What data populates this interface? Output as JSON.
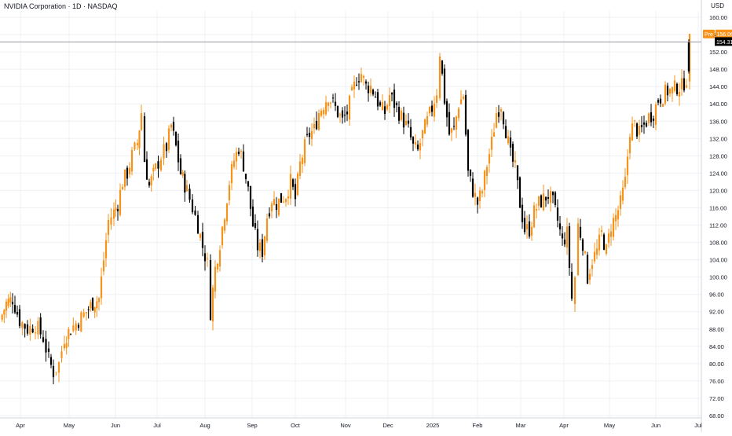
{
  "header": {
    "title": "NVIDIA Corporation · 1D · NASDAQ",
    "currency": "USD"
  },
  "colors": {
    "up": "#f7931a",
    "down": "#000000",
    "grid": "#eef0f4",
    "axis_text": "#131722",
    "last_price_bg": "#000000",
    "pre_bg": "#f7931a"
  },
  "price_labels": {
    "pre_tag": "Pre",
    "pre_price": "156.06",
    "last_price": "154.31"
  },
  "chart_data": {
    "type": "candlestick",
    "title": "NVIDIA Corporation · 1D · NASDAQ",
    "ylabel": "USD",
    "ylim": [
      68,
      161
    ],
    "y_ticks": [
      "160.00",
      "156.00",
      "152.00",
      "148.00",
      "144.00",
      "140.00",
      "136.00",
      "132.00",
      "128.00",
      "124.00",
      "120.00",
      "116.00",
      "112.00",
      "108.00",
      "104.00",
      "100.00",
      "96.00",
      "92.00",
      "88.00",
      "84.00",
      "80.00",
      "76.00",
      "72.00",
      "68.00"
    ],
    "x_ticks": [
      "Apr",
      "May",
      "Jun",
      "Jul",
      "Aug",
      "Sep",
      "Oct",
      "Nov",
      "Dec",
      "2025",
      "Feb",
      "Mar",
      "Apr",
      "May",
      "Jun",
      "Jul"
    ],
    "grid": true,
    "last_price": 154.31,
    "premarket_price": 156.06,
    "ohlc_note": "approximate path read from candles",
    "close_path": [
      [
        0,
        90
      ],
      [
        8,
        94
      ],
      [
        16,
        95
      ],
      [
        25,
        90
      ],
      [
        35,
        88
      ],
      [
        45,
        89
      ],
      [
        55,
        86
      ],
      [
        62,
        81
      ],
      [
        68,
        78
      ],
      [
        75,
        80
      ],
      [
        82,
        86
      ],
      [
        90,
        88
      ],
      [
        100,
        90
      ],
      [
        110,
        92
      ],
      [
        118,
        94
      ],
      [
        126,
        95
      ],
      [
        132,
        104
      ],
      [
        138,
        113
      ],
      [
        145,
        115
      ],
      [
        150,
        117
      ],
      [
        156,
        122
      ],
      [
        162,
        124
      ],
      [
        168,
        128
      ],
      [
        175,
        131
      ],
      [
        180,
        138
      ],
      [
        184,
        127
      ],
      [
        190,
        121
      ],
      [
        198,
        125
      ],
      [
        205,
        128
      ],
      [
        212,
        130
      ],
      [
        218,
        135
      ],
      [
        224,
        130
      ],
      [
        230,
        124
      ],
      [
        238,
        120
      ],
      [
        245,
        116
      ],
      [
        252,
        112
      ],
      [
        258,
        107
      ],
      [
        264,
        103
      ],
      [
        268,
        92
      ],
      [
        274,
        102
      ],
      [
        280,
        108
      ],
      [
        286,
        115
      ],
      [
        292,
        122
      ],
      [
        298,
        127
      ],
      [
        304,
        130
      ],
      [
        310,
        126
      ],
      [
        316,
        120
      ],
      [
        322,
        112
      ],
      [
        328,
        107
      ],
      [
        334,
        106
      ],
      [
        340,
        114
      ],
      [
        346,
        118
      ],
      [
        352,
        117
      ],
      [
        358,
        118
      ],
      [
        364,
        119
      ],
      [
        370,
        122
      ],
      [
        376,
        118
      ],
      [
        382,
        126
      ],
      [
        388,
        130
      ],
      [
        394,
        133
      ],
      [
        400,
        134
      ],
      [
        406,
        138
      ],
      [
        412,
        140
      ],
      [
        418,
        142
      ],
      [
        424,
        140
      ],
      [
        430,
        138
      ],
      [
        436,
        136
      ],
      [
        442,
        138
      ],
      [
        448,
        142
      ],
      [
        454,
        146
      ],
      [
        460,
        147
      ],
      [
        466,
        144
      ],
      [
        472,
        144
      ],
      [
        478,
        142
      ],
      [
        484,
        139
      ],
      [
        490,
        138
      ],
      [
        496,
        142
      ],
      [
        502,
        140
      ],
      [
        508,
        138
      ],
      [
        514,
        136
      ],
      [
        520,
        134
      ],
      [
        526,
        130
      ],
      [
        532,
        129
      ],
      [
        538,
        133
      ],
      [
        544,
        136
      ],
      [
        550,
        139
      ],
      [
        556,
        143
      ],
      [
        560,
        152
      ],
      [
        566,
        141
      ],
      [
        572,
        133
      ],
      [
        578,
        134
      ],
      [
        584,
        140
      ],
      [
        590,
        142
      ],
      [
        596,
        124
      ],
      [
        602,
        120
      ],
      [
        608,
        117
      ],
      [
        614,
        120
      ],
      [
        620,
        126
      ],
      [
        626,
        131
      ],
      [
        632,
        138
      ],
      [
        638,
        140
      ],
      [
        644,
        134
      ],
      [
        650,
        128
      ],
      [
        656,
        125
      ],
      [
        662,
        117
      ],
      [
        668,
        111
      ],
      [
        674,
        111
      ],
      [
        680,
        115
      ],
      [
        686,
        117
      ],
      [
        692,
        118
      ],
      [
        698,
        119
      ],
      [
        704,
        117
      ],
      [
        710,
        113
      ],
      [
        716,
        108
      ],
      [
        722,
        110
      ],
      [
        728,
        95
      ],
      [
        732,
        100
      ],
      [
        736,
        112
      ],
      [
        742,
        108
      ],
      [
        748,
        100
      ],
      [
        754,
        104
      ],
      [
        760,
        106
      ],
      [
        766,
        110
      ],
      [
        772,
        106
      ],
      [
        778,
        112
      ],
      [
        784,
        114
      ],
      [
        790,
        117
      ],
      [
        796,
        122
      ],
      [
        802,
        134
      ],
      [
        808,
        135
      ],
      [
        814,
        133
      ],
      [
        820,
        135
      ],
      [
        826,
        137
      ],
      [
        832,
        138
      ],
      [
        838,
        141
      ],
      [
        844,
        142
      ],
      [
        850,
        143
      ],
      [
        856,
        143
      ],
      [
        862,
        144
      ],
      [
        868,
        144
      ],
      [
        874,
        146
      ],
      [
        878,
        154.3
      ]
    ]
  }
}
